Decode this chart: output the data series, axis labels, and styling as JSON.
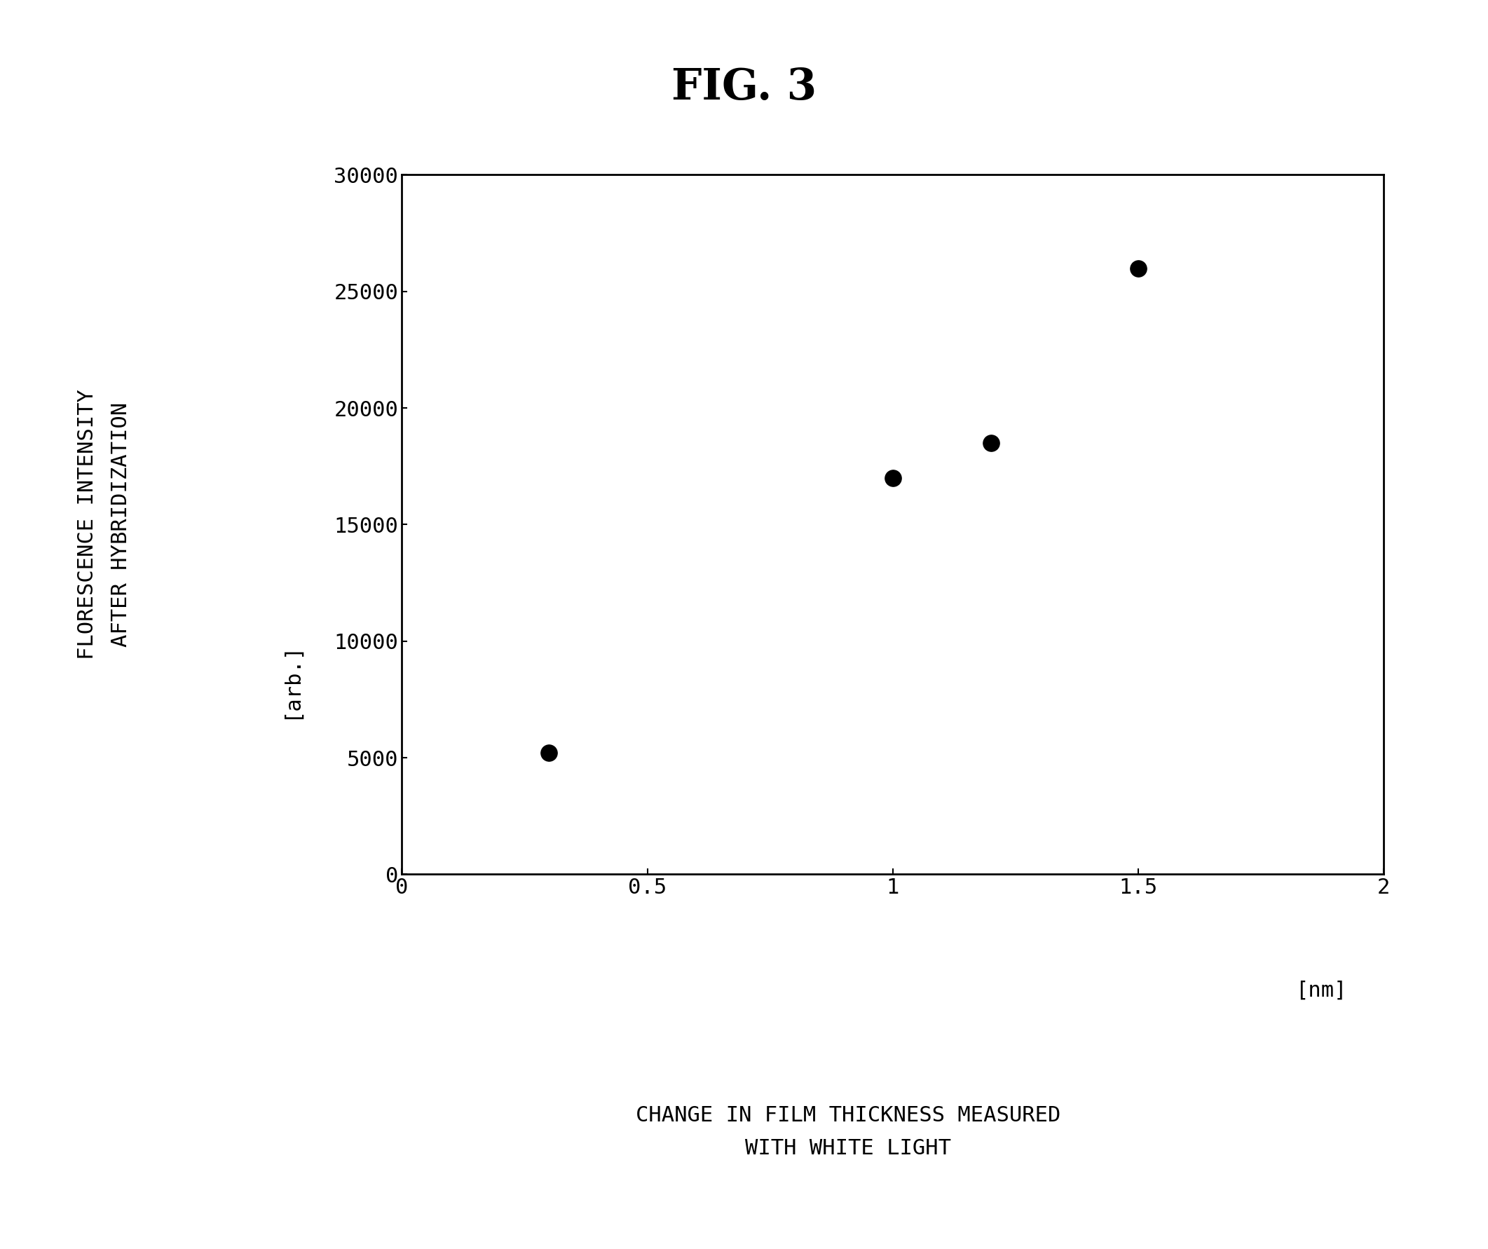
{
  "title": "FIG. 3",
  "x_data": [
    0.3,
    1.0,
    1.2,
    1.5
  ],
  "y_data": [
    5200,
    17000,
    18500,
    26000
  ],
  "xlabel_line1": "CHANGE IN FILM THICKNESS MEASURED",
  "xlabel_line2": "WITH WHITE LIGHT",
  "xlabel_unit": "[nm]",
  "ylabel_line1": "FLORESCENCE INTENSITY",
  "ylabel_line2": "AFTER HYBRIDIZATION",
  "ylabel_unit": "[arb.]",
  "xlim": [
    0,
    2
  ],
  "ylim": [
    0,
    30000
  ],
  "xticks": [
    0,
    0.5,
    1,
    1.5,
    2
  ],
  "yticks": [
    0,
    5000,
    10000,
    15000,
    20000,
    25000,
    30000
  ],
  "marker_color": "black",
  "marker_size": 280,
  "background_color": "#ffffff",
  "title_fontsize": 44,
  "axis_label_fontsize": 22,
  "tick_fontsize": 22,
  "unit_fontsize": 22
}
